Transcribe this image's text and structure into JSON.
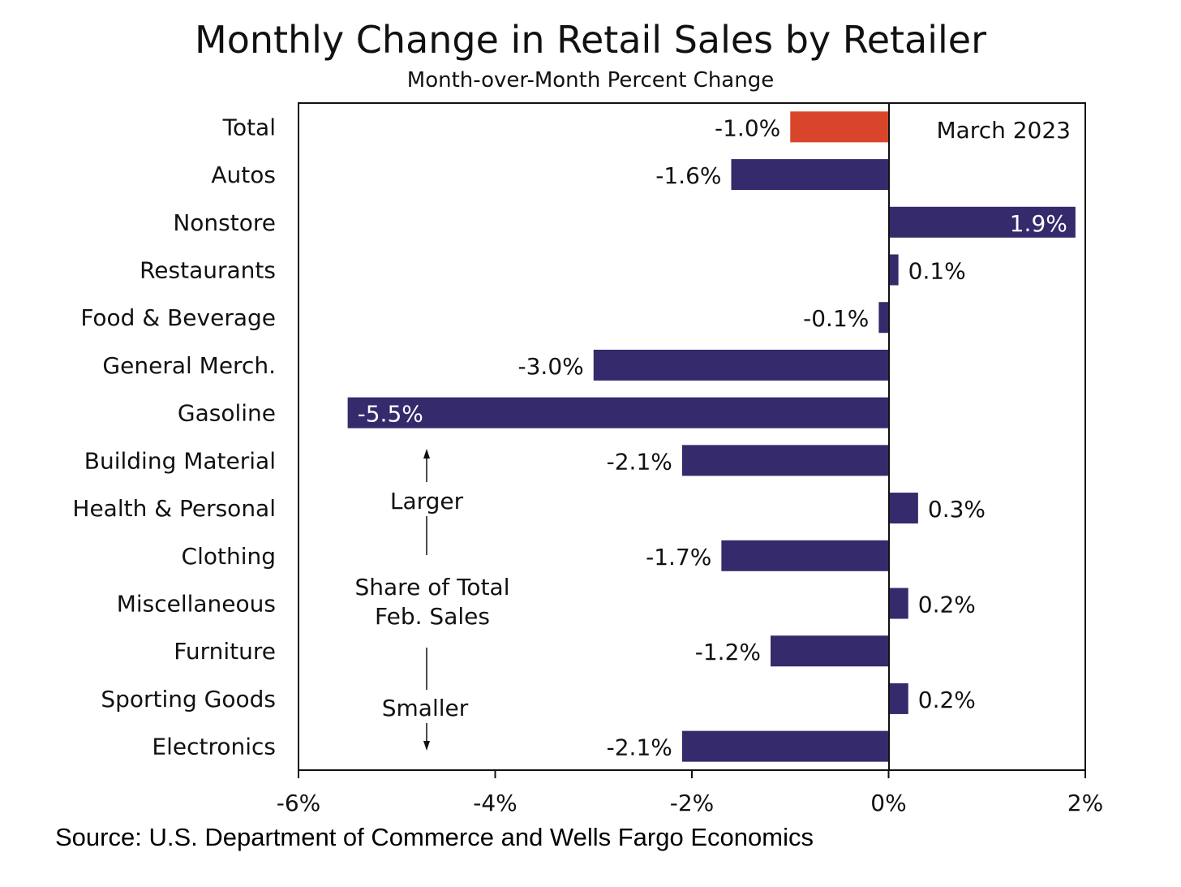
{
  "title": "Monthly Change in Retail Sales by Retailer",
  "subtitle": "Month-over-Month Percent Change",
  "source": "Source: U.S. Department of Commerce and Wells Fargo Economics",
  "colors": {
    "bar": "#352a6b",
    "highlight": "#d9452b",
    "text": "#111111"
  },
  "chart_data": {
    "type": "bar",
    "orientation": "horizontal",
    "categories": [
      "Total",
      "Autos",
      "Nonstore",
      "Restaurants",
      "Food & Beverage",
      "General Merch.",
      "Gasoline",
      "Building Material",
      "Health & Personal",
      "Clothing",
      "Miscellaneous",
      "Furniture",
      "Sporting Goods",
      "Electronics"
    ],
    "values": [
      -1.0,
      -1.6,
      1.9,
      0.1,
      -0.1,
      -3.0,
      -5.5,
      -2.1,
      0.3,
      -1.7,
      0.2,
      -1.2,
      0.2,
      -2.1
    ],
    "data_labels": [
      "-1.0%",
      "-1.6%",
      "1.9%",
      "0.1%",
      "-0.1%",
      "-3.0%",
      "-5.5%",
      "-2.1%",
      "0.3%",
      "-1.7%",
      "0.2%",
      "-1.2%",
      "0.2%",
      "-2.1%"
    ],
    "highlight_category": "Total",
    "xlim": [
      -6,
      2
    ],
    "xticks": [
      -6,
      -4,
      -2,
      0,
      2
    ],
    "xtick_labels": [
      "-6%",
      "-4%",
      "-2%",
      "0%",
      "2%"
    ],
    "grid": false,
    "annotations": {
      "period": "March 2023",
      "larger": "Larger",
      "share_line1": "Share of Total",
      "share_line2": "Feb. Sales",
      "smaller": "Smaller"
    }
  }
}
